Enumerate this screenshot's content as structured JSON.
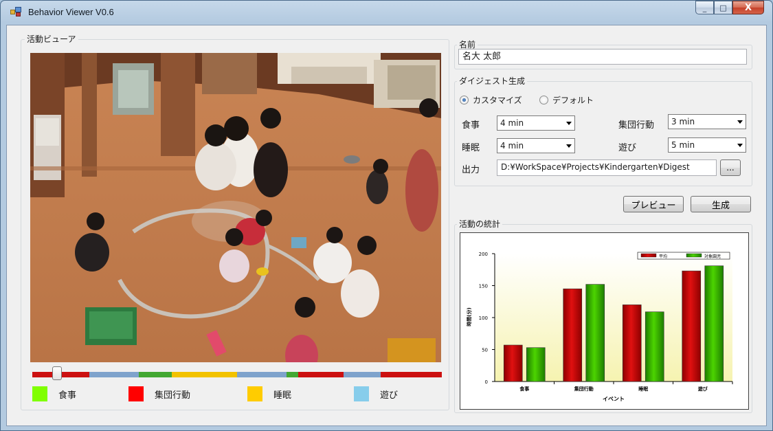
{
  "window": {
    "title": "Behavior Viewer V0.6",
    "min_glyph": "_",
    "max_glyph": "□",
    "close_glyph": "X"
  },
  "viewer": {
    "label": "活動ビューア",
    "timeline_segments": [
      {
        "activity": "group",
        "color": "#cc1111",
        "share": 0.14
      },
      {
        "activity": "play",
        "color": "#7fa3cc",
        "share": 0.12
      },
      {
        "activity": "meal",
        "color": "#43a833",
        "share": 0.08
      },
      {
        "activity": "sleep",
        "color": "#f2c200",
        "share": 0.16
      },
      {
        "activity": "play",
        "color": "#7fa3cc",
        "share": 0.12
      },
      {
        "activity": "meal",
        "color": "#43a833",
        "share": 0.03
      },
      {
        "activity": "group",
        "color": "#cc1111",
        "share": 0.11
      },
      {
        "activity": "play",
        "color": "#7fa3cc",
        "share": 0.09
      },
      {
        "activity": "group",
        "color": "#cc1111",
        "share": 0.15
      }
    ],
    "seek_position": 0.06,
    "legend": [
      {
        "name": "meal",
        "label": "食事",
        "color": "#80ff00"
      },
      {
        "name": "group",
        "label": "集団行動",
        "color": "#ff0000"
      },
      {
        "name": "sleep",
        "label": "睡眠",
        "color": "#ffcc00"
      },
      {
        "name": "play",
        "label": "遊び",
        "color": "#87cdeb"
      }
    ]
  },
  "name_group": {
    "label": "名前",
    "value": "名大 太郎"
  },
  "digest": {
    "label": "ダイジェスト生成",
    "mode_customize": "カスタマイズ",
    "mode_default": "デフォルト",
    "meal_label": "食事",
    "meal_value": "4 min",
    "group_label": "集団行動",
    "group_value": "3 min",
    "sleep_label": "睡眠",
    "sleep_value": "4 min",
    "play_label": "遊び",
    "play_value": "5 min",
    "output_label": "出力",
    "output_path": "D:¥WorkSpace¥Projects¥Kindergarten¥Digest",
    "browse_label": "..."
  },
  "buttons": {
    "preview": "プレビュー",
    "generate": "生成"
  },
  "stats": {
    "label": "活動の統計"
  },
  "chart_data": {
    "type": "bar",
    "categories": [
      "食事",
      "集団行動",
      "睡眠",
      "遊び"
    ],
    "series": [
      {
        "name": "平均",
        "color": "#cc0000",
        "values": [
          57,
          145,
          120,
          173
        ]
      },
      {
        "name": "対象園児",
        "color": "#33bb00",
        "values": [
          53,
          152,
          109,
          181
        ]
      }
    ],
    "xlabel": "イベント",
    "ylabel": "時間(分)",
    "ylim": [
      0,
      200
    ],
    "yticks": [
      0,
      50,
      100,
      150,
      200
    ],
    "legend_position": "top-right",
    "background": "gradient-yellow"
  }
}
